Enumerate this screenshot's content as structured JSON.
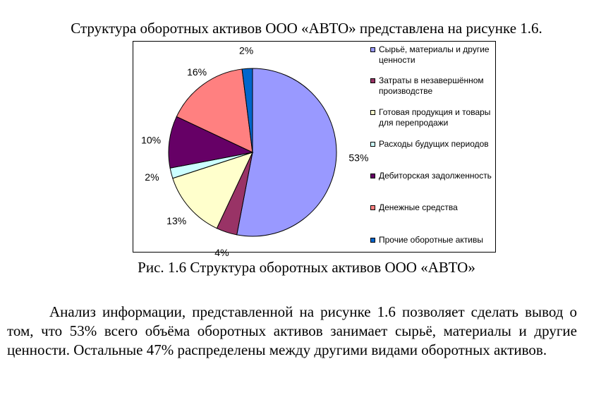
{
  "document": {
    "lead_text": "Структура оборотных активов ООО «АВТО» представлена на рисунке 1.6.",
    "caption": "Рис. 1.6 Структура оборотных активов ООО «АВТО»",
    "paragraph": "Анализ информации, представленной на рисунке 1.6 позволяет сделать вывод о том, что 53% всего объёма оборотных активов занимает сырьё, материалы и другие ценности. Остальные 47% распределены между другими видами оборотных активов."
  },
  "chart_data": {
    "type": "pie",
    "title": "",
    "legend_position": "right",
    "slices": [
      {
        "label": "Сырьё, материалы и другие ценности",
        "value": 53,
        "display": "53%",
        "color": "#9999ff"
      },
      {
        "label": "Затраты в незавершённом производстве",
        "value": 4,
        "display": "4%",
        "color": "#993366"
      },
      {
        "label": "Готовая продукция и товары для перепродажи",
        "value": 13,
        "display": "13%",
        "color": "#ffffcc"
      },
      {
        "label": "Расходы будущих периодов",
        "value": 2,
        "display": "2%",
        "color": "#ccffff"
      },
      {
        "label": "Дебиторская задолженность",
        "value": 10,
        "display": "10%",
        "color": "#660066"
      },
      {
        "label": "Денежные средства",
        "value": 16,
        "display": "16%",
        "color": "#ff8080"
      },
      {
        "label": "Прочие оборотные активы",
        "value": 2,
        "display": "2%",
        "color": "#0066cc"
      }
    ]
  }
}
